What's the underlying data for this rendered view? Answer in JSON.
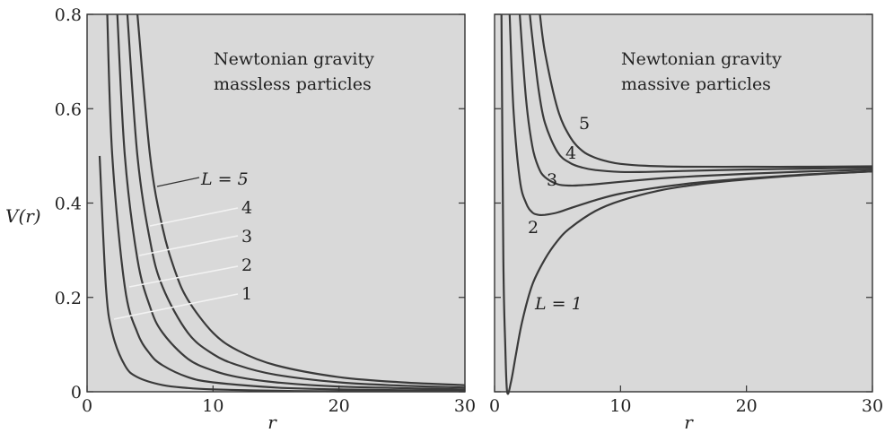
{
  "chart_data": [
    {
      "type": "line",
      "title": "Newtonian gravity",
      "subtitle": "massless particles",
      "xlabel": "r",
      "ylabel": "V(r)",
      "xlim": [
        0,
        30
      ],
      "ylim": [
        0,
        0.8
      ],
      "xticks": [
        "0",
        "10",
        "20",
        "30"
      ],
      "yticks": [
        "0",
        "0.2",
        "0.4",
        "0.6",
        "0.8"
      ],
      "grid": false,
      "series": [
        {
          "name": "1",
          "label": "1",
          "L": 1,
          "x": [
            1.0,
            1.5,
            2,
            3,
            4,
            6,
            8,
            10,
            15,
            20,
            30
          ],
          "y": [
            0.5,
            0.222,
            0.125,
            0.056,
            0.031,
            0.014,
            0.008,
            0.005,
            0.002,
            0.001,
            0.001
          ]
        },
        {
          "name": "2",
          "label": "2",
          "L": 2,
          "x": [
            1.6,
            2,
            3,
            4,
            5,
            6,
            8,
            10,
            15,
            20,
            30
          ],
          "y": [
            0.8,
            0.5,
            0.222,
            0.125,
            0.08,
            0.056,
            0.031,
            0.02,
            0.009,
            0.005,
            0.002
          ]
        },
        {
          "name": "3",
          "label": "3",
          "L": 3,
          "x": [
            2.4,
            3,
            4,
            5,
            6,
            8,
            10,
            12,
            15,
            20,
            30
          ],
          "y": [
            0.8,
            0.5,
            0.281,
            0.18,
            0.125,
            0.07,
            0.045,
            0.031,
            0.02,
            0.011,
            0.005
          ]
        },
        {
          "name": "4",
          "label": "4",
          "L": 4,
          "x": [
            3.2,
            4,
            5,
            6,
            8,
            10,
            12,
            15,
            20,
            25,
            30
          ],
          "y": [
            0.8,
            0.5,
            0.32,
            0.222,
            0.125,
            0.08,
            0.056,
            0.036,
            0.02,
            0.013,
            0.009
          ]
        },
        {
          "name": "5",
          "label": "L = 5",
          "L": 5,
          "x": [
            4.0,
            5,
            6,
            7,
            8,
            10,
            12,
            15,
            20,
            25,
            30
          ],
          "y": [
            0.8,
            0.5,
            0.347,
            0.255,
            0.195,
            0.125,
            0.087,
            0.056,
            0.031,
            0.02,
            0.014
          ]
        }
      ]
    },
    {
      "type": "line",
      "title": "Newtonian gravity",
      "subtitle": "massive particles",
      "xlabel": "r",
      "ylabel": "",
      "xlim": [
        0,
        30
      ],
      "ylim": [
        0,
        0.8
      ],
      "xticks": [
        "0",
        "10",
        "20",
        "30"
      ],
      "yticks": [
        "0",
        "0.2",
        "0.4",
        "0.6",
        "0.8"
      ],
      "grid": false,
      "series": [
        {
          "name": "L = 1",
          "label": "L = 1",
          "L": 1,
          "x": [
            0.55,
            0.7,
            0.85,
            1.0,
            1.3,
            1.7,
            2.2,
            3,
            4,
            5,
            6,
            8,
            10,
            13,
            16,
            20,
            25,
            30
          ],
          "y": [
            0.8,
            0.28,
            0.1,
            0.0,
            0.02,
            0.08,
            0.15,
            0.227,
            0.281,
            0.32,
            0.347,
            0.383,
            0.405,
            0.426,
            0.439,
            0.45,
            0.46,
            0.467
          ]
        },
        {
          "name": "2",
          "label": "2",
          "L": 2,
          "x": [
            1.2,
            1.5,
            2,
            2.5,
            3,
            3.5,
            4,
            5,
            6,
            8,
            10,
            13,
            16,
            20,
            25,
            30
          ],
          "y": [
            0.8,
            0.6,
            0.45,
            0.4,
            0.38,
            0.375,
            0.375,
            0.38,
            0.389,
            0.406,
            0.42,
            0.433,
            0.443,
            0.452,
            0.461,
            0.467
          ]
        },
        {
          "name": "3",
          "label": "3",
          "L": 3,
          "x": [
            2.0,
            2.5,
            3,
            3.5,
            4,
            5,
            6,
            7,
            8,
            10,
            13,
            16,
            20,
            25,
            30
          ],
          "y": [
            0.8,
            0.62,
            0.52,
            0.475,
            0.455,
            0.44,
            0.437,
            0.438,
            0.44,
            0.445,
            0.452,
            0.457,
            0.462,
            0.467,
            0.471
          ]
        },
        {
          "name": "4",
          "label": "4",
          "L": 4,
          "x": [
            2.8,
            3,
            3.5,
            4,
            5,
            6,
            7,
            8,
            10,
            12,
            15,
            20,
            25,
            30
          ],
          "y": [
            0.8,
            0.75,
            0.64,
            0.57,
            0.508,
            0.485,
            0.475,
            0.47,
            0.466,
            0.466,
            0.468,
            0.471,
            0.473,
            0.475
          ]
        },
        {
          "name": "5",
          "label": "5",
          "L": 5,
          "x": [
            3.6,
            4,
            5,
            6,
            7,
            8,
            9,
            10,
            12,
            15,
            20,
            25,
            30
          ],
          "y": [
            0.8,
            0.72,
            0.6,
            0.54,
            0.51,
            0.496,
            0.488,
            0.483,
            0.479,
            0.477,
            0.477,
            0.477,
            0.478
          ]
        }
      ]
    }
  ]
}
